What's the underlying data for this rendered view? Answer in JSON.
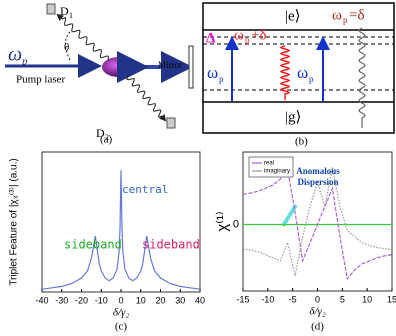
{
  "panel_a": {
    "omega": "ω",
    "omega_sub": "p",
    "theta": "θ",
    "d1": "D",
    "d1_sub": "1",
    "pump_laser": "Pump laser",
    "mirror": "Mirror",
    "d2": "D",
    "d2_sub": "2",
    "caption": "(a)"
  },
  "panel_b": {
    "e_state": "|e⟩",
    "g_state": "|g⟩",
    "delta": "Δ",
    "plus": {
      "omega": "ω",
      "sub": "p",
      "rest": "+δ"
    },
    "minus": {
      "omega": "ω",
      "sub": "p",
      "rest": "=δ"
    },
    "left_pump": {
      "omega": "ω",
      "sub": "p"
    },
    "right_pump": {
      "omega": "ω",
      "sub": "p"
    },
    "caption": "(b)"
  },
  "chart_data": [
    {
      "type": "line",
      "ylabel": "Triplet Feature of |χ₃⁽³⁾| (a.u.)",
      "xlabel": "δ/γ₂",
      "caption": "(c)",
      "color": "#6677dd",
      "x": [
        -40,
        -35,
        -30,
        -25,
        -20,
        -17,
        -15,
        -14,
        -13,
        -12,
        -11,
        -10,
        -8,
        -6,
        -4,
        -2,
        -1,
        -0.5,
        0,
        0.5,
        1,
        2,
        4,
        6,
        8,
        10,
        11,
        12,
        13,
        14,
        15,
        17,
        20,
        25,
        30,
        35,
        40
      ],
      "values": [
        0.02,
        0.03,
        0.04,
        0.06,
        0.1,
        0.15,
        0.24,
        0.32,
        0.4,
        0.3,
        0.2,
        0.15,
        0.1,
        0.08,
        0.1,
        0.16,
        0.28,
        0.45,
        0.87,
        0.45,
        0.28,
        0.16,
        0.1,
        0.08,
        0.1,
        0.15,
        0.2,
        0.3,
        0.4,
        0.32,
        0.24,
        0.15,
        0.1,
        0.06,
        0.04,
        0.03,
        0.02
      ],
      "xlim": [
        -40,
        40
      ],
      "ylim": [
        0,
        1
      ],
      "xticks": [
        -40,
        -30,
        -20,
        -10,
        0,
        10,
        20,
        30,
        40
      ],
      "annotations": [
        {
          "text": "central",
          "color": "#3366cc"
        },
        {
          "text": "sideband",
          "color": "#22aa22"
        },
        {
          "text": "sideband",
          "color": "#dd2266"
        }
      ]
    },
    {
      "type": "line",
      "ylabel": "χ⁽¹⁾",
      "xlabel": "δ/γ₂",
      "caption": "(d)",
      "legend": "upper left",
      "zero_line_color": "#33cc33",
      "annotation": [
        "Anomalous",
        "Dispersion"
      ],
      "x": [
        -15,
        -13.5,
        -12,
        -10.5,
        -9,
        -7.5,
        -6,
        -4.5,
        -3,
        -1.5,
        0,
        1.5,
        3,
        4.5,
        6,
        7.5,
        9,
        10.5,
        12,
        13.5,
        15
      ],
      "series": [
        {
          "name": "real",
          "color": "#aa66dd",
          "values": [
            0.5,
            0.52,
            0.55,
            0.6,
            0.65,
            0.75,
            0.9,
            0.2,
            -0.6,
            -0.3,
            0.0,
            0.3,
            0.6,
            -0.2,
            -0.9,
            -0.75,
            -0.65,
            -0.6,
            -0.55,
            -0.52,
            -0.5
          ]
        },
        {
          "name": "imaginary",
          "color": "#999999",
          "values": [
            -0.4,
            -0.42,
            -0.45,
            -0.5,
            -0.55,
            -0.6,
            -0.3,
            -0.85,
            -0.2,
            0.3,
            0.7,
            0.3,
            0.95,
            0.3,
            -0.1,
            -0.2,
            -0.3,
            -0.35,
            -0.38,
            -0.4,
            -0.42
          ]
        }
      ],
      "xlim": [
        -15,
        15
      ],
      "ylim": [
        -1.1,
        1.2
      ],
      "xticks": [
        -15,
        -10,
        -5,
        0,
        5,
        10,
        15
      ],
      "yticks": [
        0
      ]
    }
  ]
}
